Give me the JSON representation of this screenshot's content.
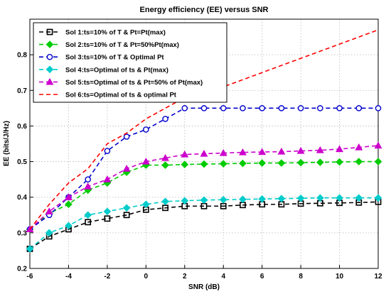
{
  "chart_data": {
    "type": "line",
    "title": "Energy efficiency (EE) versus SNR",
    "xlabel": "SNR (dB)",
    "ylabel": "EE (bits/J/Hz)",
    "xlim": [
      -6,
      12
    ],
    "ylim": [
      0.2,
      0.9
    ],
    "x_ticks": [
      -6,
      -4,
      -2,
      0,
      2,
      4,
      6,
      8,
      10,
      12
    ],
    "y_ticks": [
      0.2,
      0.3,
      0.4,
      0.5,
      0.6,
      0.7,
      0.8
    ],
    "grid": true,
    "legend_position": "top-left",
    "x": [
      -6,
      -5,
      -4,
      -3,
      -2,
      -1,
      0,
      1,
      2,
      3,
      4,
      5,
      6,
      7,
      8,
      9,
      10,
      11,
      12
    ],
    "series": [
      {
        "name": "Sol 1:ts=10% of T & Pt=Pt(max)",
        "color": "#000000",
        "marker": "square",
        "values": [
          0.255,
          0.29,
          0.31,
          0.33,
          0.34,
          0.35,
          0.365,
          0.37,
          0.375,
          0.375,
          0.375,
          0.378,
          0.38,
          0.38,
          0.382,
          0.383,
          0.384,
          0.385,
          0.387
        ]
      },
      {
        "name": "Sol 2:ts=10% of T & Pt=50%Pt(max)",
        "color": "#00cc00",
        "marker": "diamond",
        "values": [
          0.31,
          0.355,
          0.38,
          0.42,
          0.44,
          0.47,
          0.49,
          0.49,
          0.492,
          0.493,
          0.494,
          0.495,
          0.496,
          0.496,
          0.497,
          0.498,
          0.499,
          0.5,
          0.5
        ]
      },
      {
        "name": "Sol 3:ts=10% of T & Optimal Pt",
        "color": "#0000cc",
        "marker": "circle",
        "values": [
          0.31,
          0.35,
          0.4,
          0.45,
          0.53,
          0.57,
          0.59,
          0.62,
          0.65,
          0.65,
          0.65,
          0.65,
          0.65,
          0.65,
          0.65,
          0.65,
          0.65,
          0.65,
          0.65
        ]
      },
      {
        "name": "Sol 4:ts=Optimal of ts & Pt(max)",
        "color": "#00cccc",
        "marker": "diamond",
        "values": [
          0.255,
          0.3,
          0.32,
          0.35,
          0.36,
          0.37,
          0.38,
          0.388,
          0.39,
          0.392,
          0.393,
          0.394,
          0.395,
          0.396,
          0.397,
          0.398,
          0.398,
          0.398,
          0.398
        ]
      },
      {
        "name": "Sol 5:ts=Optimal of ts & Pt=50% of Pt(max)",
        "color": "#cc00cc",
        "marker": "triangle",
        "values": [
          0.31,
          0.36,
          0.4,
          0.43,
          0.45,
          0.48,
          0.5,
          0.51,
          0.52,
          0.522,
          0.524,
          0.526,
          0.527,
          0.528,
          0.53,
          0.532,
          0.535,
          0.54,
          0.545
        ]
      },
      {
        "name": "Sol 6:ts=Optimal of ts & optimal Pt",
        "color": "#ff0000",
        "marker": "none",
        "values": [
          0.31,
          0.38,
          0.44,
          0.48,
          0.55,
          0.58,
          0.62,
          0.65,
          0.68,
          0.69,
          0.71,
          0.73,
          0.75,
          0.77,
          0.79,
          0.81,
          0.83,
          0.85,
          0.87
        ]
      }
    ]
  }
}
